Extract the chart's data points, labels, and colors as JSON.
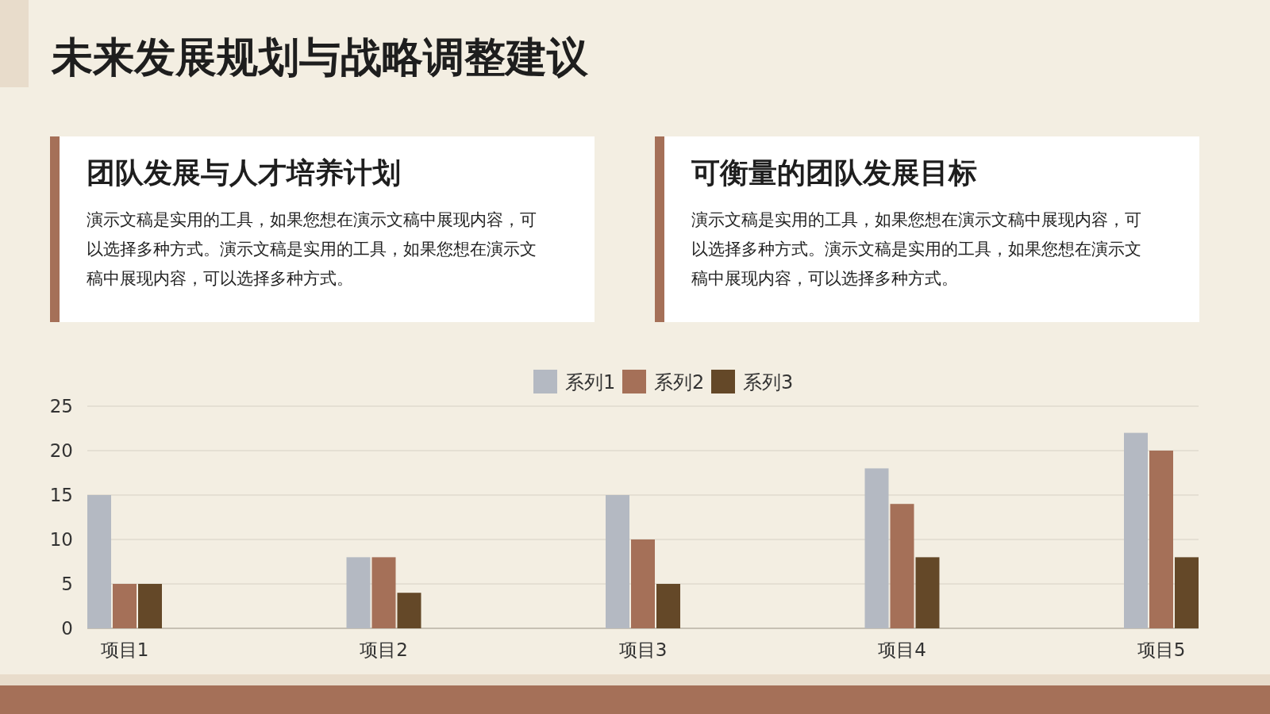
{
  "chart_data": [
    {
      "type": "other",
      "title": "未来发展规划与战略调整建议"
    },
    {
      "type": "other",
      "title": "团队发展与人才培养计划",
      "annotations": [
        "演示文稿是实用的工具，如果您想在演示文稿中展现内容，可以选择多种方式。演示文稿是实用的工具，如果您想在演示文稿中展现内容，可以选择多种方式。"
      ]
    },
    {
      "type": "other",
      "title": "可衡量的团队发展目标",
      "annotations": [
        "演示文稿是实用的工具，如果您想在演示文稿中展现内容，可以选择多种方式。演示文稿是实用的工具，如果您想在演示文稿中展现内容，可以选择多种方式。"
      ]
    },
    {
      "type": "bar",
      "categories": [
        "项目1",
        "项目2",
        "项目3",
        "项目4",
        "项目5"
      ],
      "series": [
        {
          "name": "系列1",
          "color": "#b4b9c2",
          "values": [
            15,
            8,
            15,
            18,
            22
          ]
        },
        {
          "name": "系列2",
          "color": "#a57058",
          "values": [
            5,
            8,
            10,
            14,
            20
          ]
        },
        {
          "name": "系列3",
          "color": "#644828",
          "values": [
            5,
            4,
            5,
            8,
            8
          ]
        }
      ],
      "ylim": [
        0,
        25
      ],
      "yticks": [
        0,
        5,
        10,
        15,
        20,
        25
      ],
      "grid": "y",
      "legend": "top"
    }
  ]
}
